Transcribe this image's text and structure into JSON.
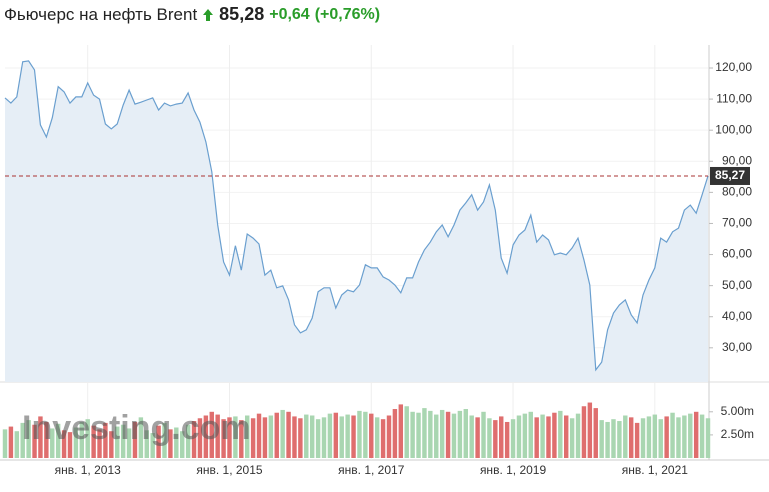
{
  "header": {
    "title": "Фьючерс на нефть Brent",
    "price": "85,28",
    "change": "+0,64",
    "change_percent": "(+0,76%)"
  },
  "chart_data": {
    "type": "line",
    "watermark": "Investing.com",
    "categories": [
      null,
      null,
      null,
      null,
      null,
      null,
      null,
      null,
      null,
      null,
      null,
      null,
      null,
      null,
      "янв. 1, 2013",
      null,
      null,
      null,
      null,
      null,
      null,
      null,
      null,
      null,
      null,
      null,
      null,
      null,
      null,
      null,
      null,
      null,
      null,
      null,
      null,
      null,
      null,
      null,
      "янв. 1, 2015",
      null,
      null,
      null,
      null,
      null,
      null,
      null,
      null,
      null,
      null,
      null,
      null,
      null,
      null,
      null,
      null,
      null,
      null,
      null,
      null,
      null,
      null,
      null,
      "янв. 1, 2017",
      null,
      null,
      null,
      null,
      null,
      null,
      null,
      null,
      null,
      null,
      null,
      null,
      null,
      null,
      null,
      null,
      null,
      null,
      null,
      null,
      null,
      null,
      null,
      "янв. 1, 2019",
      null,
      null,
      null,
      null,
      null,
      null,
      null,
      null,
      null,
      null,
      null,
      null,
      null,
      null,
      null,
      null,
      null,
      null,
      null,
      null,
      null,
      null,
      null,
      "янв. 1, 2021",
      null,
      null,
      null,
      null,
      null,
      null,
      null,
      null,
      null
    ],
    "series": [
      {
        "name": "Brent",
        "color": "#6a9fcf",
        "fill": "#e6eef6",
        "values": [
          110.4,
          108.7,
          110.7,
          122,
          122.3,
          119.4,
          101.7,
          97.8,
          104,
          114,
          112.3,
          108.7,
          110.7,
          110.7,
          115.2,
          111.3,
          110,
          102,
          100.4,
          102,
          108.1,
          112.9,
          108.4,
          109,
          109.7,
          110.4,
          106.5,
          108.7,
          107.8,
          108.4,
          108.7,
          112,
          106.5,
          102.6,
          96.2,
          86.6,
          69.5,
          57.6,
          53.4,
          62.8,
          55,
          66.6,
          65.3,
          63.4,
          53.4,
          55,
          49.3,
          49.9,
          45.4,
          37.4,
          34.8,
          35.8,
          39.6,
          48,
          49.3,
          49.3,
          42.8,
          47,
          48.6,
          48,
          50.2,
          56.7,
          55.7,
          55.7,
          52.8,
          51.8,
          50.2,
          47.7,
          52.5,
          52.5,
          57.6,
          61.5,
          64,
          67.3,
          69.5,
          65.7,
          69.5,
          74.3,
          76.6,
          79.2,
          74.3,
          76.9,
          82.4,
          74.3,
          58.9,
          54,
          63.1,
          66.3,
          67.9,
          72.7,
          64,
          66.3,
          64.7,
          59.9,
          60.5,
          59.9,
          62.1,
          65.3,
          58.3,
          50.2,
          22.9,
          25.4,
          35.8,
          41.2,
          43.8,
          45.4,
          40.6,
          38,
          47,
          51.8,
          55.7,
          65.3,
          64,
          67.3,
          68.5,
          74.3,
          75.9,
          73.3,
          79.2,
          85.3
        ]
      }
    ],
    "ylim": [
      19,
      127.4
    ],
    "yticks": [
      {
        "value": 30,
        "label": "30,00"
      },
      {
        "value": 40,
        "label": "40,00"
      },
      {
        "value": 50,
        "label": "50,00"
      },
      {
        "value": 60,
        "label": "60,00"
      },
      {
        "value": 70,
        "label": "70,00"
      },
      {
        "value": 80,
        "label": "80,00"
      },
      {
        "value": 90,
        "label": "90,00"
      },
      {
        "value": 100,
        "label": "100,00"
      },
      {
        "value": 110,
        "label": "110,00"
      },
      {
        "value": 120,
        "label": "120,00"
      }
    ],
    "price_line": {
      "value": 85.27,
      "label": "85,27",
      "color": "#a33"
    },
    "volume": {
      "up_color": "#a9d6b1",
      "down_color": "#df6e6e",
      "values": [
        3.1,
        3.4,
        2.9,
        3.8,
        4.1,
        3.6,
        4.5,
        3.9,
        3.2,
        3.7,
        3.0,
        2.8,
        3.3,
        3.9,
        4.2,
        3.5,
        3.1,
        3.8,
        2.9,
        3.4,
        3.6,
        3.2,
        3.9,
        4.4,
        3.0,
        2.7,
        3.5,
        3.8,
        3.1,
        3.3,
        2.9,
        3.6,
        4.0,
        4.3,
        4.6,
        5.0,
        4.7,
        4.2,
        4.4,
        4.5,
        4.1,
        4.6,
        4.3,
        4.8,
        4.4,
        4.6,
        4.9,
        5.2,
        5.0,
        4.5,
        4.3,
        4.7,
        4.6,
        4.2,
        4.4,
        4.8,
        4.9,
        4.5,
        4.7,
        4.6,
        5.1,
        5.0,
        4.8,
        4.4,
        4.2,
        4.6,
        5.3,
        5.8,
        5.6,
        5.0,
        4.9,
        5.4,
        5.1,
        4.7,
        5.2,
        5.0,
        4.8,
        5.1,
        5.3,
        4.6,
        4.4,
        5.0,
        4.3,
        4.1,
        4.5,
        3.9,
        4.2,
        4.6,
        4.8,
        5.0,
        4.4,
        4.7,
        4.5,
        4.9,
        5.1,
        4.6,
        4.3,
        4.8,
        5.6,
        6.0,
        5.4,
        4.1,
        3.9,
        4.2,
        4.0,
        4.6,
        4.4,
        3.8,
        4.3,
        4.5,
        4.7,
        4.2,
        4.5,
        4.9,
        4.4,
        4.6,
        4.8,
        5.0,
        4.7,
        4.3
      ],
      "ylim": [
        0,
        7.9
      ],
      "yticks": [
        {
          "value": 2.5,
          "label": "2.50m"
        },
        {
          "value": 5,
          "label": "5.00m"
        }
      ]
    },
    "grid": true
  }
}
